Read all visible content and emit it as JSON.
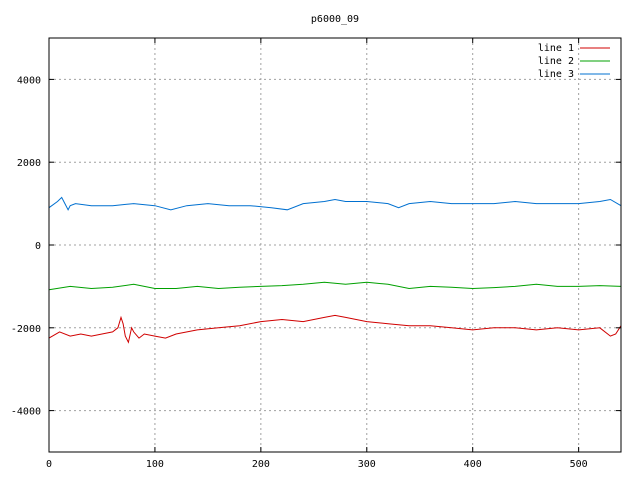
{
  "chart_data": {
    "type": "line",
    "title": "p6000_09",
    "xlabel": "",
    "ylabel": "",
    "xlim": [
      0,
      540
    ],
    "ylim": [
      -5000,
      5000
    ],
    "xticks": [
      0,
      100,
      200,
      300,
      400,
      500
    ],
    "yticks": [
      -4000,
      -2000,
      0,
      2000,
      4000
    ],
    "grid": true,
    "legend_position": "top-right",
    "series": [
      {
        "name": "line 1",
        "color": "#d00000",
        "x": [
          0,
          10,
          20,
          30,
          40,
          50,
          60,
          65,
          68,
          70,
          72,
          75,
          78,
          80,
          85,
          90,
          100,
          110,
          120,
          140,
          160,
          180,
          200,
          220,
          240,
          260,
          270,
          280,
          300,
          320,
          340,
          360,
          380,
          400,
          420,
          440,
          460,
          480,
          500,
          520,
          530,
          535,
          540
        ],
        "y": [
          -2250,
          -2100,
          -2200,
          -2150,
          -2200,
          -2150,
          -2100,
          -2000,
          -1750,
          -1900,
          -2200,
          -2350,
          -2000,
          -2100,
          -2250,
          -2150,
          -2200,
          -2250,
          -2150,
          -2050,
          -2000,
          -1950,
          -1850,
          -1800,
          -1850,
          -1750,
          -1700,
          -1750,
          -1850,
          -1900,
          -1950,
          -1950,
          -2000,
          -2050,
          -2000,
          -2000,
          -2050,
          -2000,
          -2050,
          -2000,
          -2200,
          -2150,
          -1950
        ]
      },
      {
        "name": "line 2",
        "color": "#00a000",
        "x": [
          0,
          20,
          40,
          60,
          80,
          90,
          100,
          120,
          140,
          160,
          180,
          200,
          220,
          240,
          260,
          280,
          300,
          320,
          340,
          360,
          380,
          400,
          420,
          440,
          460,
          480,
          500,
          520,
          540
        ],
        "y": [
          -1080,
          -1000,
          -1050,
          -1020,
          -950,
          -1000,
          -1050,
          -1050,
          -1000,
          -1050,
          -1020,
          -1000,
          -980,
          -950,
          -900,
          -950,
          -900,
          -950,
          -1050,
          -1000,
          -1020,
          -1050,
          -1030,
          -1000,
          -950,
          -1000,
          -1000,
          -980,
          -1000
        ]
      },
      {
        "name": "line 3",
        "color": "#0070d0",
        "x": [
          0,
          8,
          12,
          15,
          18,
          20,
          25,
          40,
          60,
          80,
          100,
          115,
          130,
          150,
          170,
          190,
          210,
          225,
          240,
          260,
          270,
          280,
          300,
          320,
          330,
          340,
          360,
          380,
          400,
          420,
          440,
          460,
          480,
          500,
          520,
          530,
          540
        ],
        "y": [
          900,
          1050,
          1150,
          1000,
          850,
          950,
          1000,
          950,
          950,
          1000,
          950,
          850,
          950,
          1000,
          950,
          950,
          900,
          850,
          1000,
          1050,
          1100,
          1050,
          1050,
          1000,
          900,
          1000,
          1050,
          1000,
          1000,
          1000,
          1050,
          1000,
          1000,
          1000,
          1050,
          1100,
          950
        ]
      }
    ]
  }
}
